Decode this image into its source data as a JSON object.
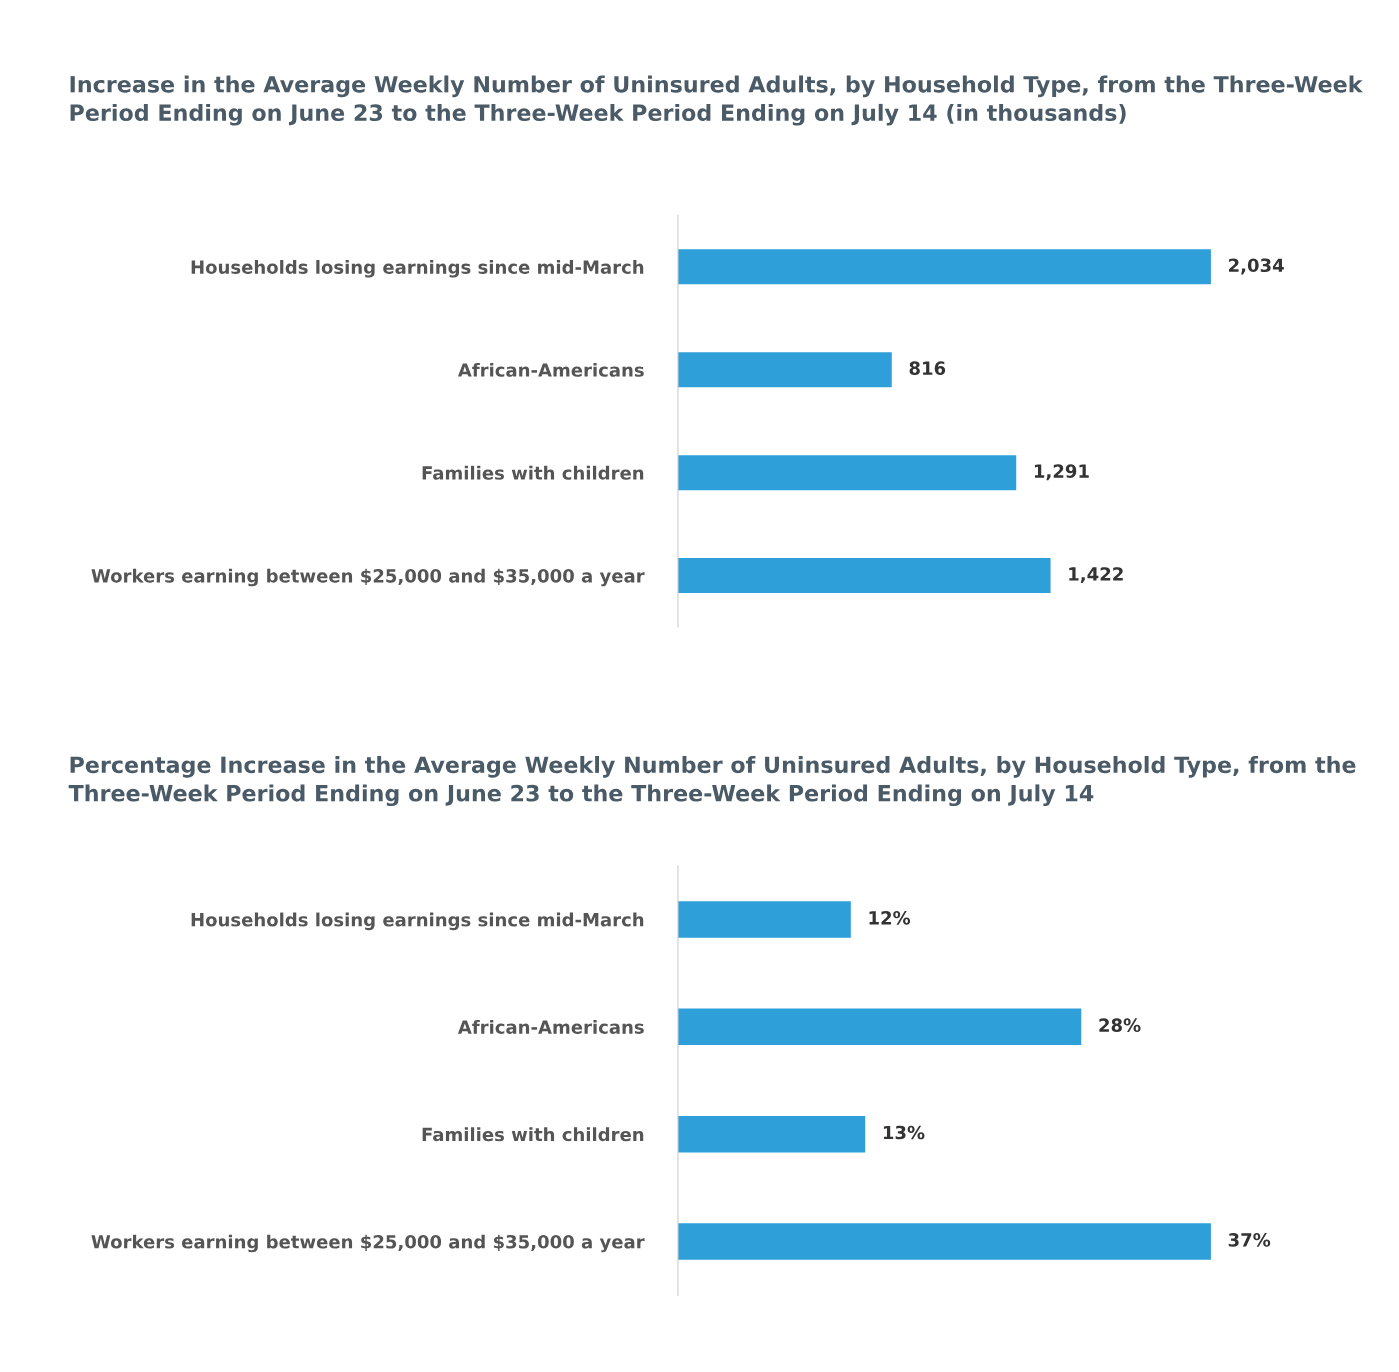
{
  "chart_data": [
    {
      "type": "bar",
      "orientation": "horizontal",
      "title": "Increase in the Average Weekly Number of Uninsured Adults, by Household Type, from the Three-Week Period Ending on June 23 to the Three-Week Period Ending on July 14 (in thousands)",
      "categories": [
        "Households losing earnings since mid-March",
        "African-Americans",
        "Families with children",
        "Workers earning between $25,000 and $35,000 a year"
      ],
      "values": [
        2034,
        816,
        1291,
        1422
      ],
      "value_labels": [
        "2,034",
        "816",
        "1,291",
        "1,422"
      ],
      "color": "#2e9fd9",
      "grid": false,
      "legend": false
    },
    {
      "type": "bar",
      "orientation": "horizontal",
      "title": "Percentage Increase in the Average Weekly Number of Uninsured Adults, by Household Type, from the Three-Week Period Ending on June 23 to the Three-Week Period Ending on July 14",
      "categories": [
        "Households losing earnings since mid-March",
        "African-Americans",
        "Families with children",
        "Workers earning between $25,000 and $35,000 a year"
      ],
      "values": [
        12,
        28,
        13,
        37
      ],
      "value_labels": [
        "12%",
        "28%",
        "13%",
        "37%"
      ],
      "color": "#2e9fd9",
      "grid": false,
      "legend": false
    }
  ]
}
